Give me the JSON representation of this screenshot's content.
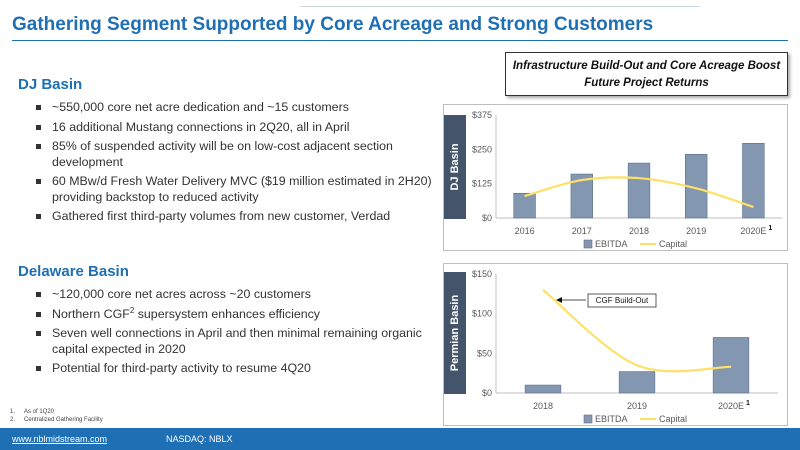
{
  "title": "Gathering Segment Supported by Core Acreage and Strong Customers",
  "dj": {
    "heading": "DJ Basin",
    "bullets": [
      "~550,000 core net acre dedication and ~15 customers",
      "16 additional Mustang connections in 2Q20, all in April",
      "85% of suspended activity will be on low-cost adjacent section development",
      "60 MBw/d Fresh Water Delivery MVC ($19 million estimated in 2H20) providing backstop to reduced activity",
      "Gathered first third-party volumes from new customer, Verdad"
    ]
  },
  "delaware": {
    "heading": "Delaware Basin",
    "bullets": [
      "~120,000 core net acres across ~20 customers",
      "Northern CGF",
      "supersystem enhances efficiency",
      "Seven well connections in April and then minimal remaining organic capital expected in 2020",
      "Potential for third-party activity to resume 4Q20"
    ],
    "cgf_sup": "2"
  },
  "callout": {
    "line1": "Infrastructure Build-Out and Core Acreage Boost",
    "line2": "Future Project Returns"
  },
  "footnotes": [
    {
      "num": "1.",
      "text": "As of 1Q20"
    },
    {
      "num": "2.",
      "text": "Centralized Gathering Facility"
    }
  ],
  "footer": {
    "url": "www.nblmidstream.com",
    "ticker": "NASDAQ: NBLX"
  },
  "colors": {
    "brand_blue": "#1f6fb5",
    "bar_fill": "#8497b0",
    "capital_line": "#ffe066",
    "side_label_bg": "#44546a"
  },
  "chart_data": [
    {
      "type": "bar",
      "side_label": "DJ Basin",
      "categories": [
        "2016",
        "2017",
        "2018",
        "2019",
        "2020E"
      ],
      "category_superscript": {
        "2020E": "1"
      },
      "series": [
        {
          "name": "EBITDA",
          "kind": "bar",
          "values": [
            90,
            160,
            200,
            232,
            272
          ]
        },
        {
          "name": "Capital",
          "kind": "smooth-line",
          "values": [
            80,
            138,
            145,
            108,
            40
          ]
        }
      ],
      "yticks": [
        "$0",
        "$125",
        "$250",
        "$375"
      ],
      "ylim": [
        0,
        375
      ],
      "legend": [
        "EBITDA",
        "Capital"
      ],
      "legend_position": "bottom",
      "grid": false
    },
    {
      "type": "bar",
      "side_label": "Permian Basin",
      "categories": [
        "2018",
        "2019",
        "2020E"
      ],
      "category_superscript": {
        "2020E": "1"
      },
      "series": [
        {
          "name": "EBITDA",
          "kind": "bar",
          "values": [
            10,
            27,
            70
          ]
        },
        {
          "name": "Capital",
          "kind": "smooth-line",
          "values": [
            130,
            35,
            33
          ]
        }
      ],
      "yticks": [
        "$0",
        "$50",
        "$100",
        "$150"
      ],
      "ylim": [
        0,
        150
      ],
      "legend": [
        "EBITDA",
        "Capital"
      ],
      "legend_position": "bottom",
      "grid": false,
      "annotation": "CGF Build-Out"
    }
  ]
}
